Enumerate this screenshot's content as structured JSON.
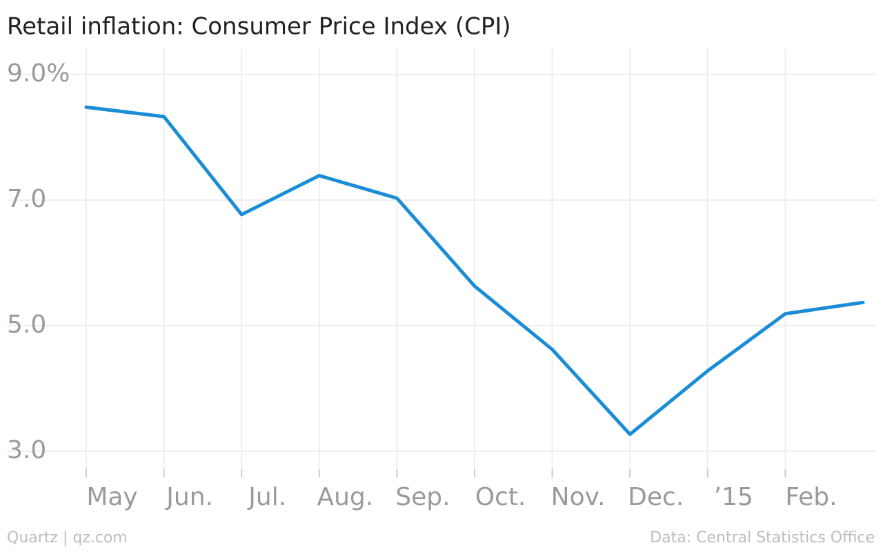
{
  "chart_data": {
    "type": "line",
    "title": "Retail inflation: Consumer Price Index (CPI)",
    "categories": [
      "May",
      "Jun.",
      "Jul.",
      "Aug.",
      "Sep.",
      "Oct.",
      "Nov.",
      "Dec.",
      "’15",
      "Feb.",
      null
    ],
    "series": [
      {
        "name": "CPI",
        "color": "#1b8dd6",
        "values": [
          8.48,
          8.33,
          6.77,
          7.39,
          7.03,
          5.63,
          4.62,
          3.27,
          4.28,
          5.19,
          5.37
        ]
      }
    ],
    "ylim": [
      3.0,
      9.0
    ],
    "yticks": [
      {
        "value": 9.0,
        "label": "9.0%"
      },
      {
        "value": 7.0,
        "label": "7.0"
      },
      {
        "value": 5.0,
        "label": "5.0"
      },
      {
        "value": 3.0,
        "label": "3.0"
      }
    ],
    "grid": true,
    "source_left": "Quartz | qz.com",
    "source_right": "Data: Central Statistics Office"
  }
}
